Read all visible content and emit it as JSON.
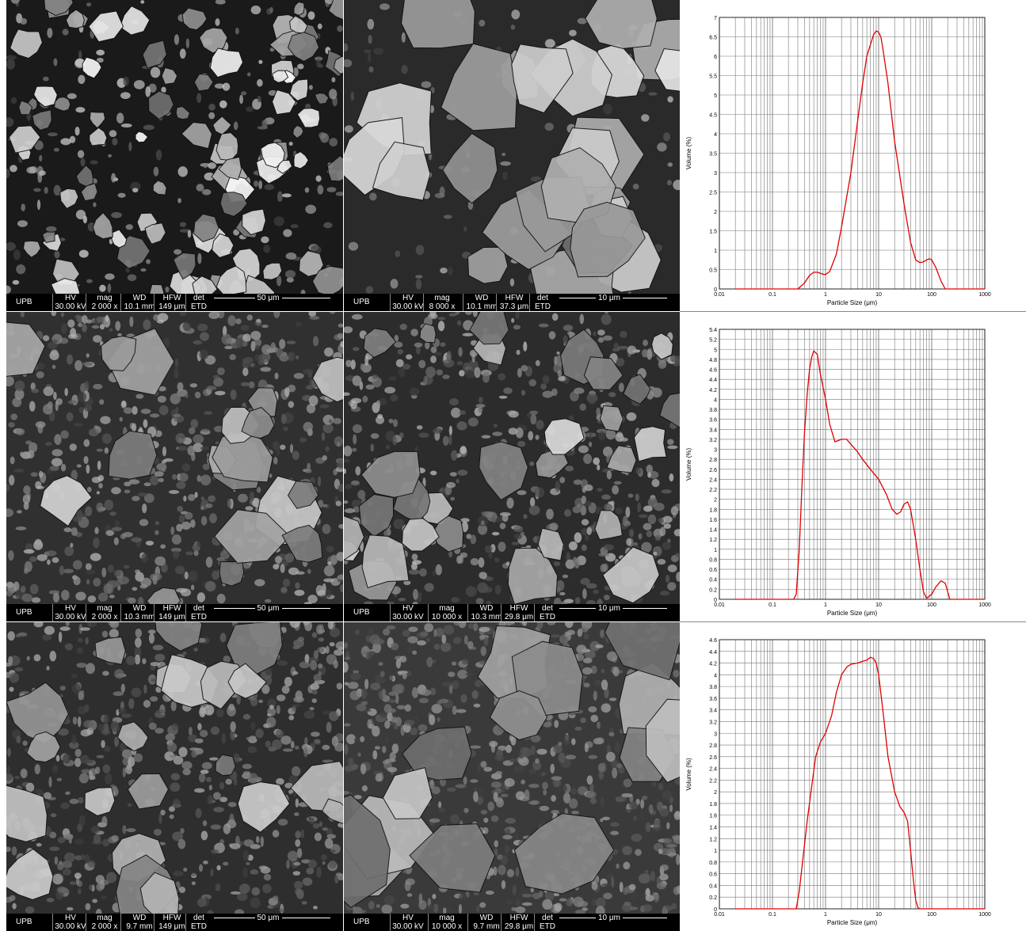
{
  "sem_panels": [
    {
      "brand": "UPB",
      "hv_label": "HV",
      "hv": "30.00 kV",
      "mag_label": "mag",
      "mag": "2 000 x",
      "wd_label": "WD",
      "wd": "10.1 mm",
      "hfw_label": "HFW",
      "hfw": "149 μm",
      "det_label": "det",
      "det": "ETD",
      "scale": "50 μm"
    },
    {
      "brand": "UPB",
      "hv_label": "HV",
      "hv": "30.00 kV",
      "mag_label": "mag",
      "mag": "8 000 x",
      "wd_label": "WD",
      "wd": "10.1 mm",
      "hfw_label": "HFW",
      "hfw": "37.3 μm",
      "det_label": "det",
      "det": "ETD",
      "scale": "10 μm"
    },
    {
      "brand": "UPB",
      "hv_label": "HV",
      "hv": "30.00 kV",
      "mag_label": "mag",
      "mag": "2 000 x",
      "wd_label": "WD",
      "wd": "10.3 mm",
      "hfw_label": "HFW",
      "hfw": "149 μm",
      "det_label": "det",
      "det": "ETD",
      "scale": "50 μm"
    },
    {
      "brand": "UPB",
      "hv_label": "HV",
      "hv": "30.00 kV",
      "mag_label": "mag",
      "mag": "10 000 x",
      "wd_label": "WD",
      "wd": "10.3 mm",
      "hfw_label": "HFW",
      "hfw": "29.8 μm",
      "det_label": "det",
      "det": "ETD",
      "scale": "10 μm"
    },
    {
      "brand": "UPB",
      "hv_label": "HV",
      "hv": "30.00 kV",
      "mag_label": "mag",
      "mag": "2 000 x",
      "wd_label": "WD",
      "wd": "9.7 mm",
      "hfw_label": "HFW",
      "hfw": "149 μm",
      "det_label": "det",
      "det": "ETD",
      "scale": "50 μm"
    },
    {
      "brand": "UPB",
      "hv_label": "HV",
      "hv": "30.00 kV",
      "mag_label": "mag",
      "mag": "10 000 x",
      "wd_label": "WD",
      "wd": "9.7 mm",
      "hfw_label": "HFW",
      "hfw": "29.8 μm",
      "det_label": "det",
      "det": "ETD",
      "scale": "10 μm"
    }
  ],
  "colors": {
    "curve": "#e00000",
    "grid": "#777777",
    "axis": "#000000"
  },
  "chart_data": [
    {
      "type": "line",
      "xlabel": "Particle Size (μm)",
      "ylabel": "Volume (%)",
      "xscale": "log",
      "xlim": [
        0.01,
        1000
      ],
      "ylim": [
        0,
        7
      ],
      "xticks": [
        "0.01",
        "0.1",
        "1",
        "10",
        "100",
        "1000"
      ],
      "yticks": [
        "0",
        "0.5",
        "1",
        "1.5",
        "2",
        "2.5",
        "3",
        "3.5",
        "4",
        "4.5",
        "5",
        "5.5",
        "6",
        "6.5",
        "7"
      ],
      "grid": true,
      "series": [
        {
          "x": [
            0.02,
            0.3,
            0.4,
            0.5,
            0.6,
            0.7,
            0.9,
            1.0,
            1.2,
            1.6,
            2.0,
            3.0,
            4.0,
            5.0,
            6.0,
            8.0,
            9.0,
            10.0,
            11.0,
            12.0,
            15.0,
            20.0,
            30.0,
            40.0,
            50.0,
            60.0,
            70.0,
            80.0,
            90.0,
            100.0,
            120.0,
            150.0,
            180.0,
            200.0,
            1000.0
          ],
          "y": [
            0,
            0,
            0.15,
            0.35,
            0.43,
            0.43,
            0.38,
            0.37,
            0.45,
            0.9,
            1.6,
            3.0,
            4.3,
            5.3,
            6.0,
            6.55,
            6.65,
            6.62,
            6.5,
            6.2,
            5.3,
            3.8,
            2.2,
            1.2,
            0.75,
            0.68,
            0.7,
            0.75,
            0.78,
            0.75,
            0.55,
            0.2,
            0,
            0,
            0
          ]
        }
      ]
    },
    {
      "type": "line",
      "xlabel": "Particle Size (μm)",
      "ylabel": "Volume (%)",
      "xscale": "log",
      "xlim": [
        0.01,
        1000
      ],
      "ylim": [
        0,
        5.4
      ],
      "xticks": [
        "0.01",
        "0.1",
        "1",
        "10",
        "100",
        "1000"
      ],
      "yticks": [
        "0",
        "0.2",
        "0.4",
        "0.6",
        "0.8",
        "1",
        "1.2",
        "1.4",
        "1.6",
        "1.8",
        "2",
        "2.2",
        "2.4",
        "2.6",
        "2.8",
        "3",
        "3.2",
        "3.4",
        "3.6",
        "3.8",
        "4",
        "4.2",
        "4.4",
        "4.6",
        "4.8",
        "5",
        "5.2",
        "5.4"
      ],
      "grid": true,
      "series": [
        {
          "x": [
            0.02,
            0.25,
            0.28,
            0.32,
            0.36,
            0.4,
            0.45,
            0.5,
            0.55,
            0.6,
            0.7,
            0.8,
            1.0,
            1.2,
            1.5,
            2.0,
            2.5,
            3.0,
            4.0,
            5.0,
            7.0,
            10.0,
            14.0,
            18.0,
            22.0,
            26.0,
            30.0,
            35.0,
            40.0,
            50.0,
            60.0,
            70.0,
            80.0,
            100.0,
            120.0,
            150.0,
            180.0,
            200.0,
            220.0,
            1000.0
          ],
          "y": [
            0,
            0,
            0.1,
            1.0,
            2.3,
            3.3,
            4.1,
            4.6,
            4.85,
            4.97,
            4.9,
            4.5,
            4.0,
            3.5,
            3.15,
            3.2,
            3.2,
            3.1,
            2.95,
            2.8,
            2.6,
            2.4,
            2.1,
            1.8,
            1.7,
            1.75,
            1.9,
            1.95,
            1.8,
            1.2,
            0.6,
            0.15,
            0.02,
            0.1,
            0.25,
            0.37,
            0.32,
            0.15,
            0,
            0
          ]
        }
      ]
    },
    {
      "type": "line",
      "xlabel": "Particle Size (μm)",
      "ylabel": "Volume (%)",
      "xscale": "log",
      "xlim": [
        0.01,
        1000
      ],
      "ylim": [
        0,
        4.6
      ],
      "xticks": [
        "0.01",
        "0.1",
        "1",
        "10",
        "100",
        "1000"
      ],
      "yticks": [
        "0",
        "0.2",
        "0.4",
        "0.6",
        "0.8",
        "1",
        "1.2",
        "1.4",
        "1.6",
        "1.8",
        "2",
        "2.2",
        "2.4",
        "2.6",
        "2.8",
        "3",
        "3.2",
        "3.4",
        "3.6",
        "3.8",
        "4",
        "4.2",
        "4.4",
        "4.6"
      ],
      "grid": true,
      "series": [
        {
          "x": [
            0.02,
            0.28,
            0.32,
            0.38,
            0.45,
            0.55,
            0.65,
            0.8,
            1.0,
            1.3,
            1.6,
            2.0,
            2.5,
            3.0,
            4.0,
            5.0,
            6.0,
            7.0,
            8.0,
            9.0,
            10.0,
            12.0,
            15.0,
            20.0,
            25.0,
            30.0,
            35.0,
            40.0,
            45.0,
            50.0,
            55.0,
            60.0,
            1000.0
          ],
          "y": [
            0,
            0,
            0.3,
            0.9,
            1.5,
            2.1,
            2.6,
            2.85,
            3.0,
            3.3,
            3.7,
            4.0,
            4.13,
            4.18,
            4.2,
            4.23,
            4.25,
            4.3,
            4.28,
            4.2,
            4.0,
            3.4,
            2.6,
            2.0,
            1.75,
            1.65,
            1.5,
            1.0,
            0.5,
            0.15,
            0.02,
            0,
            0
          ]
        }
      ]
    }
  ]
}
